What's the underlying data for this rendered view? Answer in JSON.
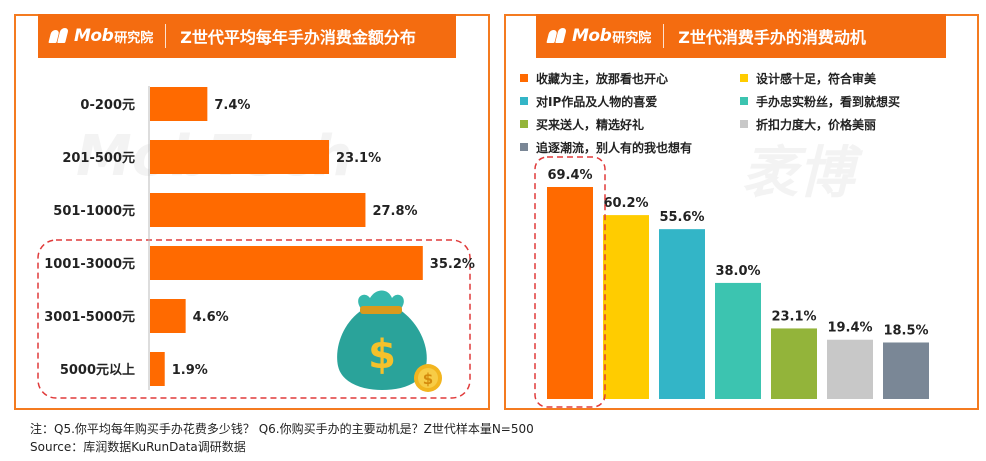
{
  "left_panel": {
    "brand": "Mob",
    "brand_sub": "研究院",
    "title": "Z世代平均每年手办消费金额分布",
    "chart_data": {
      "type": "bar",
      "orientation": "horizontal",
      "title": "Z世代平均每年手办消费金额分布",
      "categories": [
        "0-200元",
        "201-500元",
        "501-1000元",
        "1001-3000元",
        "3001-5000元",
        "5000元以上"
      ],
      "values": [
        7.4,
        23.1,
        27.8,
        35.2,
        4.6,
        1.9
      ],
      "value_labels": [
        "7.4%",
        "23.1%",
        "27.8%",
        "35.2%",
        "4.6%",
        "1.9%"
      ],
      "unit": "%",
      "xlim": [
        0,
        40
      ],
      "bar_color": "#ff6a00",
      "highlighted_categories": [
        "1001-3000元",
        "3001-5000元",
        "5000元以上"
      ]
    }
  },
  "right_panel": {
    "brand": "Mob",
    "brand_sub": "研究院",
    "title": "Z世代消费手办的消费动机",
    "chart_data": {
      "type": "bar",
      "orientation": "vertical",
      "title": "Z世代消费手办的消费动机",
      "categories": [
        "收藏为主，放那看也开心",
        "设计感十足，符合审美",
        "对IP作品及人物的喜爱",
        "手办忠实粉丝，看到就想买",
        "买来送人，精选好礼",
        "折扣力度大，价格美丽",
        "追逐潮流，别人有的我也想有"
      ],
      "values": [
        69.4,
        60.2,
        55.6,
        38.0,
        23.1,
        19.4,
        18.5
      ],
      "value_labels": [
        "69.4%",
        "60.2%",
        "55.6%",
        "38.0%",
        "23.1%",
        "19.4%",
        "18.5%"
      ],
      "colors": [
        "#ff6a00",
        "#ffcc00",
        "#33b5c7",
        "#3cc4b0",
        "#93b43a",
        "#c8c8c8",
        "#7a8796"
      ],
      "unit": "%",
      "ylim": [
        0,
        75
      ],
      "highlighted_categories": [
        "收藏为主，放那看也开心"
      ]
    }
  },
  "watermark": {
    "brand_latin": "MobTech",
    "brand_cn": "袤博"
  },
  "footer": {
    "note": "注：Q5.你平均每年购买手办花费多少钱？  Q6.你购买手办的主要动机是？Z世代样本量N=500",
    "source": "Source：库润数据KuRunData调研数据"
  },
  "colors": {
    "accent": "#f46c10",
    "border": "#f47b20",
    "highlight_dash": "#e03a3a"
  },
  "icons": [
    "money-bag-icon",
    "dollar-coin-icon"
  ]
}
